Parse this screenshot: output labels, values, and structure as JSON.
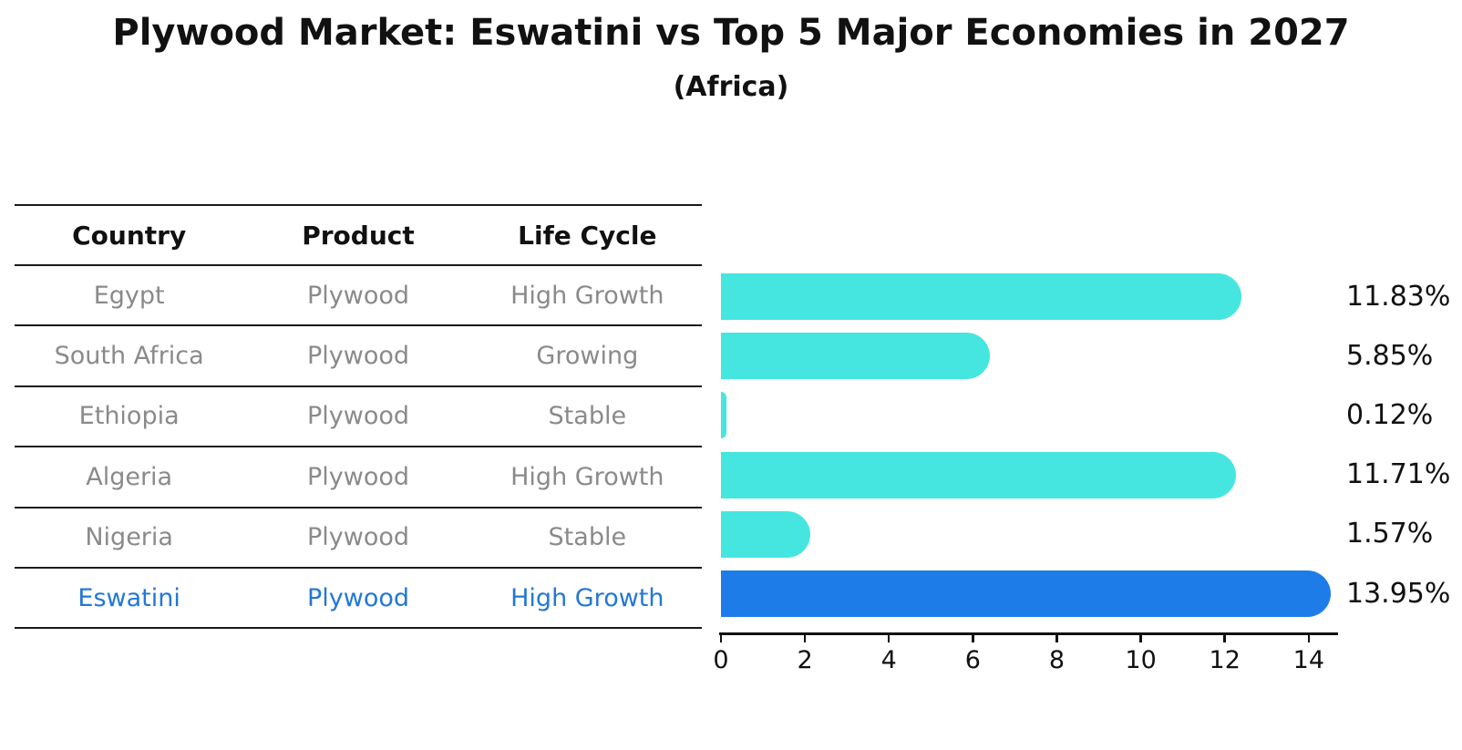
{
  "title": "Plywood Market: Eswatini vs Top 5 Major Economies in 2027",
  "subtitle": "(Africa)",
  "table": {
    "headers": [
      "Country",
      "Product",
      "Life Cycle"
    ],
    "rows": [
      {
        "country": "Egypt",
        "product": "Plywood",
        "life_cycle": "High Growth",
        "highlighted": false
      },
      {
        "country": "South Africa",
        "product": "Plywood",
        "life_cycle": "Growing",
        "highlighted": false
      },
      {
        "country": "Ethiopia",
        "product": "Plywood",
        "life_cycle": "Stable",
        "highlighted": false
      },
      {
        "country": "Algeria",
        "product": "Plywood",
        "life_cycle": "High Growth",
        "highlighted": false
      },
      {
        "country": "Nigeria",
        "product": "Plywood",
        "life_cycle": "Stable",
        "highlighted": false
      },
      {
        "country": "Eswatini",
        "product": "Plywood",
        "life_cycle": "High Growth",
        "highlighted": true
      }
    ]
  },
  "chart_data": {
    "type": "bar",
    "orientation": "horizontal",
    "title": "Plywood Market: Eswatini vs Top 5 Major Economies in 2027",
    "subtitle": "(Africa)",
    "categories": [
      "Egypt",
      "South Africa",
      "Ethiopia",
      "Algeria",
      "Nigeria",
      "Eswatini"
    ],
    "values": [
      11.83,
      5.85,
      0.12,
      11.71,
      1.57,
      13.95
    ],
    "value_labels": [
      "11.83%",
      "5.85%",
      "0.12%",
      "11.71%",
      "1.57%",
      "13.95%"
    ],
    "unit": "%",
    "x_ticks": [
      0,
      2,
      4,
      6,
      8,
      10,
      12,
      14
    ],
    "xlim": [
      0,
      14.65
    ],
    "highlight_index": 5,
    "grid": false,
    "legend": false
  },
  "colors": {
    "bar": "#45E6E0",
    "highlight_bar": "#1E7CE8",
    "highlight_text": "#2277D8",
    "cell_text": "#8A8A8A",
    "heading_text": "#111111",
    "axis": "#111111",
    "line": "#1A1A1A",
    "background": "#FFFFFF"
  }
}
